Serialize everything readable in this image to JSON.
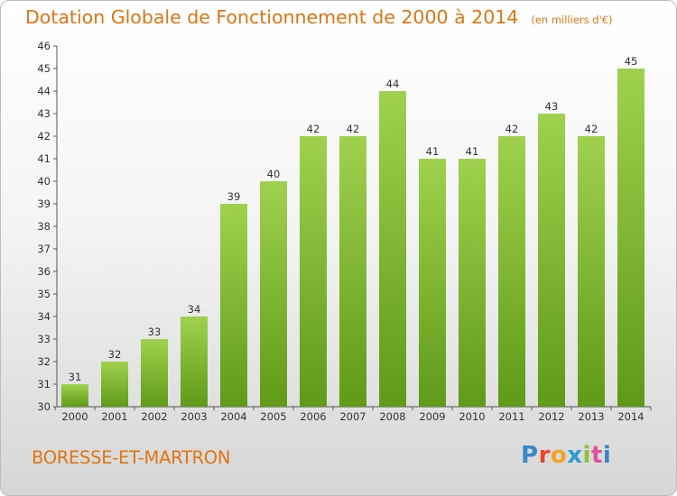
{
  "header": {
    "title": "Dotation Globale de Fonctionnement de 2000 à 2014",
    "subtitle": "(en milliers d'€)"
  },
  "footer": {
    "commune": "BORESSE-ET-MARTRON",
    "logo_letters": [
      "P",
      "r",
      "o",
      "x",
      "i",
      "t",
      "i"
    ]
  },
  "colors": {
    "title": "#e07512",
    "bar_top": "#9fd14e",
    "bar_bottom": "#5f9a18",
    "axis": "#555555"
  },
  "chart_data": {
    "type": "bar",
    "title": "Dotation Globale de Fonctionnement de 2000 à 2014",
    "xlabel": "",
    "ylabel": "",
    "categories": [
      "2000",
      "2001",
      "2002",
      "2003",
      "2004",
      "2005",
      "2006",
      "2007",
      "2008",
      "2009",
      "2010",
      "2011",
      "2012",
      "2013",
      "2014"
    ],
    "values": [
      31,
      32,
      33,
      34,
      39,
      40,
      42,
      42,
      44,
      41,
      41,
      42,
      43,
      42,
      45
    ],
    "data_labels": [
      "31",
      "32",
      "33",
      "34",
      "39",
      "40",
      "42",
      "42",
      "44",
      "41",
      "41",
      "42",
      "43",
      "42",
      "45"
    ],
    "yticks": [
      "30",
      "31",
      "32",
      "33",
      "34",
      "35",
      "36",
      "37",
      "38",
      "39",
      "40",
      "41",
      "42",
      "43",
      "44",
      "45",
      "46"
    ],
    "ylim": [
      30,
      46
    ],
    "grid": false
  }
}
